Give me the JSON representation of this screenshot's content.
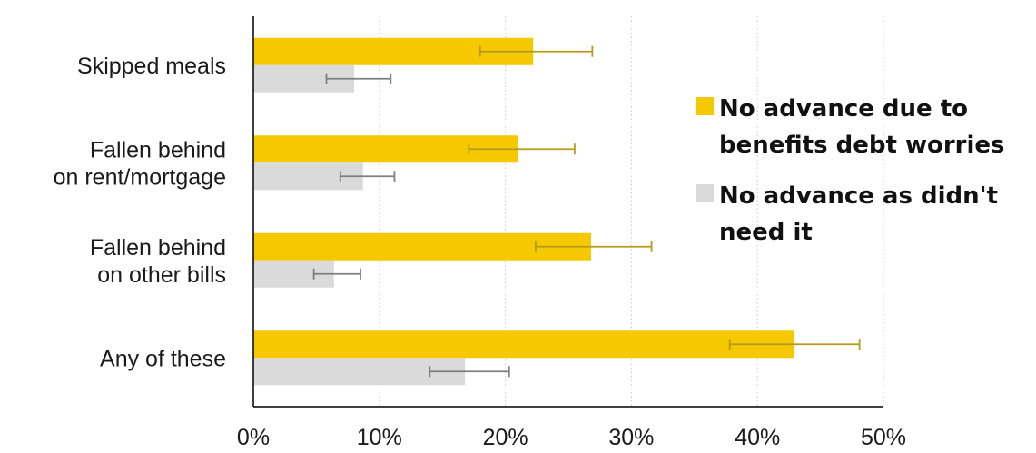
{
  "chart_data": {
    "type": "bar",
    "orientation": "horizontal",
    "categories": [
      [
        "Skipped meals"
      ],
      [
        "Fallen behind",
        "on rent/mortgage"
      ],
      [
        "Fallen behind",
        "on other bills"
      ],
      [
        "Any of these"
      ]
    ],
    "series": [
      {
        "name": "No advance due to benefits debt worries",
        "legend_lines": [
          "No advance due to",
          "benefits debt worries"
        ],
        "color": "#f5c800",
        "errorbar_color": "#b89a1a",
        "values": [
          22.2,
          21.0,
          26.8,
          42.9
        ],
        "error_low": [
          18.0,
          17.1,
          22.4,
          37.8
        ],
        "error_high": [
          26.9,
          25.5,
          31.6,
          48.1
        ]
      },
      {
        "name": "No advance as didn't need it",
        "legend_lines": [
          "No advance as didn't",
          "need it"
        ],
        "color": "#dadada",
        "errorbar_color": "#7f7f7f",
        "values": [
          8.0,
          8.7,
          6.4,
          16.8
        ],
        "error_low": [
          5.8,
          6.9,
          4.8,
          14.0
        ],
        "error_high": [
          10.9,
          11.2,
          8.5,
          20.3
        ]
      }
    ],
    "x_ticks": [
      "0%",
      "10%",
      "20%",
      "30%",
      "40%",
      "50%"
    ],
    "xlim": [
      0,
      50
    ],
    "grid": "vertical dotted",
    "legend_position": "right"
  }
}
